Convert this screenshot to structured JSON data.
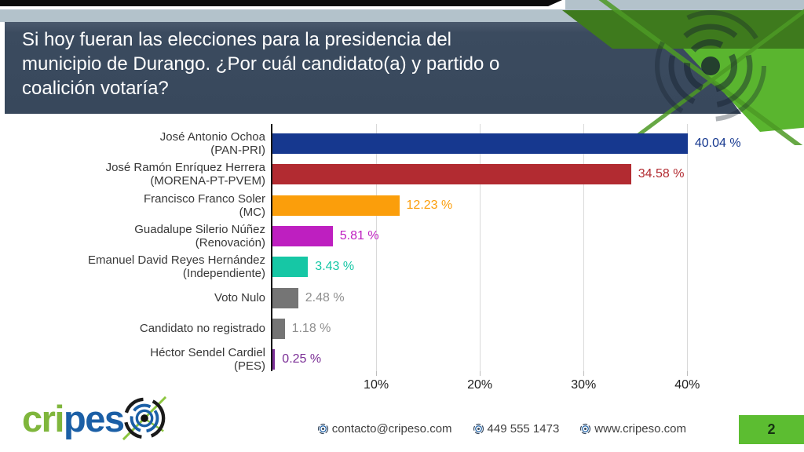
{
  "slide": {
    "title_lines": [
      "Si hoy fueran las elecciones para la presidencia del",
      "municipio de Durango. ¿Por cuál candidato(a) y partido o",
      "coalición votaría?"
    ],
    "page_number": "2"
  },
  "chart_data": {
    "type": "bar",
    "orientation": "horizontal",
    "title": "Si hoy fueran las elecciones para la presidencia del municipio de Durango. ¿Por cuál candidato(a) y partido o coalición votaría?",
    "xlabel": "",
    "ylabel": "",
    "xlim": [
      0,
      42.4
    ],
    "grid": true,
    "xticks": [
      {
        "value": 10,
        "label": "10%"
      },
      {
        "value": 20,
        "label": "20%"
      },
      {
        "value": 30,
        "label": "30%"
      },
      {
        "value": 40,
        "label": "40%"
      }
    ],
    "items": [
      {
        "label_lines": [
          "José Antonio Ochoa",
          "(PAN-PRI)"
        ],
        "value": 40.04,
        "value_label": "40.04 %",
        "color": "#16388f"
      },
      {
        "label_lines": [
          "José Ramón Enríquez Herrera",
          "(MORENA-PT-PVEM)"
        ],
        "value": 34.58,
        "value_label": "34.58 %",
        "color": "#b22b31"
      },
      {
        "label_lines": [
          "Francisco Franco Soler",
          "(MC)"
        ],
        "value": 12.23,
        "value_label": "12.23 %",
        "color": "#fb9e0b"
      },
      {
        "label_lines": [
          "Guadalupe Silerio Núñez",
          "(Renovación)"
        ],
        "value": 5.81,
        "value_label": "5.81 %",
        "color": "#be1fc0"
      },
      {
        "label_lines": [
          "Emanuel David Reyes Hernández",
          "(Independiente)"
        ],
        "value": 3.43,
        "value_label": "3.43 %",
        "color": "#16c7a5"
      },
      {
        "label_lines": [
          "Voto Nulo"
        ],
        "value": 2.48,
        "value_label": "2.48 %",
        "color": "#757575",
        "text_color": "#8f8f8f"
      },
      {
        "label_lines": [
          "Candidato no registrado"
        ],
        "value": 1.18,
        "value_label": "1.18 %",
        "color": "#757575",
        "text_color": "#8f8f8f"
      },
      {
        "label_lines": [
          "Héctor Sendel Cardiel",
          "(PES)"
        ],
        "value": 0.25,
        "value_label": "0.25 %",
        "color": "#7b2f96"
      }
    ]
  },
  "footer": {
    "logo_part1": "cri",
    "logo_part2": "pes",
    "contacts": [
      "contacto@cripeso.com",
      "449 555 1473",
      "www.cripeso.com"
    ]
  },
  "theme": {
    "accent_green": "#5cbd31",
    "dark_green": "#3e7a1d",
    "header_slate": "#3b4b5f",
    "band_gray": "#b3c2cb",
    "logo_green": "#7fb63c",
    "logo_blue": "#1b5fa6"
  }
}
